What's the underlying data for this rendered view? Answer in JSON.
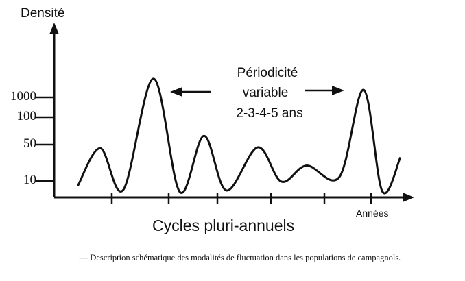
{
  "chart_data": {
    "type": "line",
    "title": "",
    "ylabel": "Densité",
    "xlabel": "Années",
    "subtitle": "Cycles pluri-annuels",
    "y_tick_labels": [
      "10",
      "50",
      "100",
      "1000"
    ],
    "y_scale": "non-linear (schematic)",
    "annotation": {
      "line1": "Périodicité",
      "line2": "variable",
      "line3": "2-3-4-5 ans"
    },
    "series": [
      {
        "x": [
          0.43,
          0.84,
          1.26,
          1.81,
          2.29,
          2.73,
          3.14,
          3.71,
          4.14,
          4.6,
          5.2,
          5.64,
          5.98,
          6.31
        ],
        "y": [
          7,
          46,
          4.6,
          1840,
          3.3,
          66,
          4.2,
          47,
          9.6,
          27,
          14.5,
          1340,
          3.7,
          36
        ]
      }
    ],
    "grid": false,
    "line_color": "#111111"
  },
  "caption": "— Description schématique des modalités de fluctuation dans les populations de campagnols."
}
